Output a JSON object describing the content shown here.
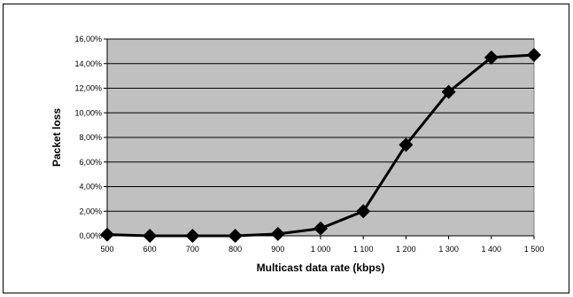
{
  "chart_data": {
    "type": "line",
    "title": "",
    "xlabel": "Multicast data rate (kbps)",
    "ylabel": "Packet loss",
    "x": [
      500,
      600,
      700,
      800,
      900,
      1000,
      1100,
      1200,
      1300,
      1400,
      1500
    ],
    "x_tick_labels": [
      "500",
      "600",
      "700",
      "800",
      "900",
      "1 000",
      "1 100",
      "1 200",
      "1 300",
      "1 400",
      "1 500"
    ],
    "series": [
      {
        "values": [
          0.1,
          0.0,
          0.0,
          0.0,
          0.15,
          0.6,
          2.0,
          7.4,
          11.7,
          14.5,
          14.7
        ]
      }
    ],
    "y_unit": "%",
    "ylim": [
      0,
      16
    ],
    "y_ticks": [
      0,
      2,
      4,
      6,
      8,
      10,
      12,
      14,
      16
    ],
    "y_tick_labels": [
      "0,00%",
      "2,00%",
      "4,00%",
      "6,00%",
      "8,00%",
      "10,00%",
      "12,00%",
      "14,00%",
      "16,00%"
    ],
    "grid": true,
    "legend": "none",
    "colors": {
      "plot_background": "#c0c0c0",
      "line": "#000000",
      "marker": "#000000",
      "grid": "#000000"
    },
    "marker": "diamond"
  }
}
